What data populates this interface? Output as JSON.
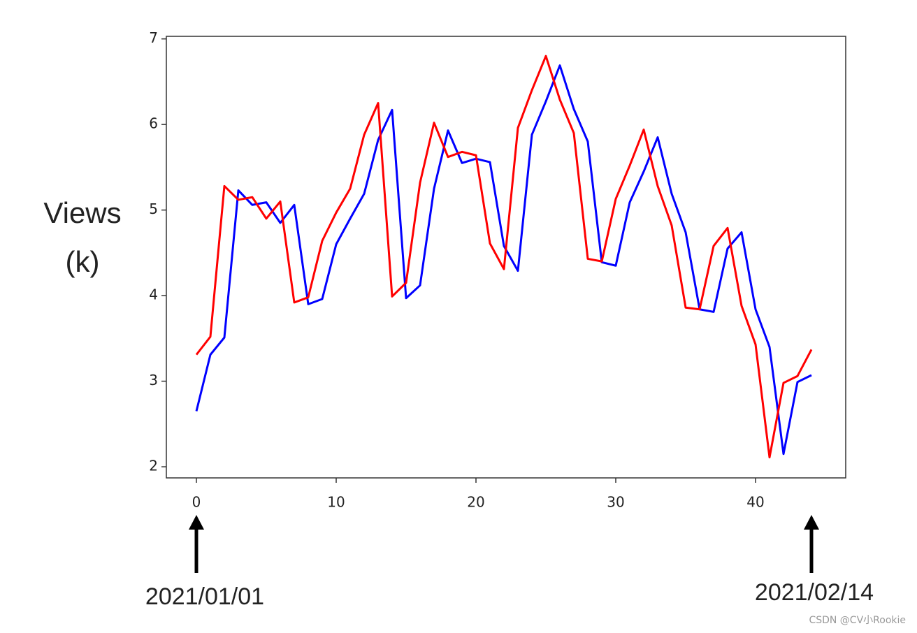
{
  "chart_data": {
    "type": "line",
    "ylabel_lines": [
      "Views",
      "(k)"
    ],
    "x": [
      0,
      1,
      2,
      3,
      4,
      5,
      6,
      7,
      8,
      9,
      10,
      11,
      12,
      13,
      14,
      15,
      16,
      17,
      18,
      19,
      20,
      21,
      22,
      23,
      24,
      25,
      26,
      27,
      28,
      29,
      30,
      31,
      32,
      33,
      34,
      35,
      36,
      37,
      38,
      39,
      40,
      41,
      42,
      43,
      44
    ],
    "series": [
      {
        "color": "#0000ff",
        "values": [
          2.65,
          3.31,
          3.51,
          5.23,
          5.06,
          5.09,
          4.85,
          5.06,
          3.9,
          3.96,
          4.6,
          4.9,
          5.19,
          5.82,
          6.17,
          3.97,
          4.12,
          5.25,
          5.93,
          5.55,
          5.6,
          5.56,
          4.58,
          4.29,
          5.88,
          6.27,
          6.69,
          6.18,
          5.8,
          4.39,
          4.35,
          5.09,
          5.45,
          5.85,
          5.19,
          4.74,
          3.84,
          3.81,
          4.55,
          4.74,
          3.84,
          3.4,
          2.15,
          2.99,
          3.07
        ]
      },
      {
        "color": "#ff0000",
        "values": [
          3.31,
          3.52,
          5.28,
          5.12,
          5.15,
          4.9,
          5.1,
          3.92,
          3.98,
          4.64,
          4.97,
          5.25,
          5.88,
          6.25,
          3.99,
          4.15,
          5.32,
          6.02,
          5.62,
          5.68,
          5.64,
          4.61,
          4.31,
          5.96,
          6.4,
          6.8,
          6.29,
          5.9,
          4.43,
          4.4,
          5.13,
          5.52,
          5.94,
          5.28,
          4.82,
          3.86,
          3.84,
          4.58,
          4.79,
          3.88,
          3.43,
          2.11,
          2.98,
          3.06,
          3.37
        ]
      }
    ],
    "xlim": [
      -2.15,
      46.45
    ],
    "xticks": [
      0,
      10,
      20,
      30,
      40
    ],
    "ylim": [
      1.87,
      7.03
    ],
    "yticks": [
      2,
      3,
      4,
      5,
      6,
      7
    ],
    "annotations": [
      {
        "text": "2021/01/01",
        "x": 0
      },
      {
        "text": "2021/02/14",
        "x": 44
      }
    ],
    "watermark": "CSDN @CV小Rookie"
  }
}
